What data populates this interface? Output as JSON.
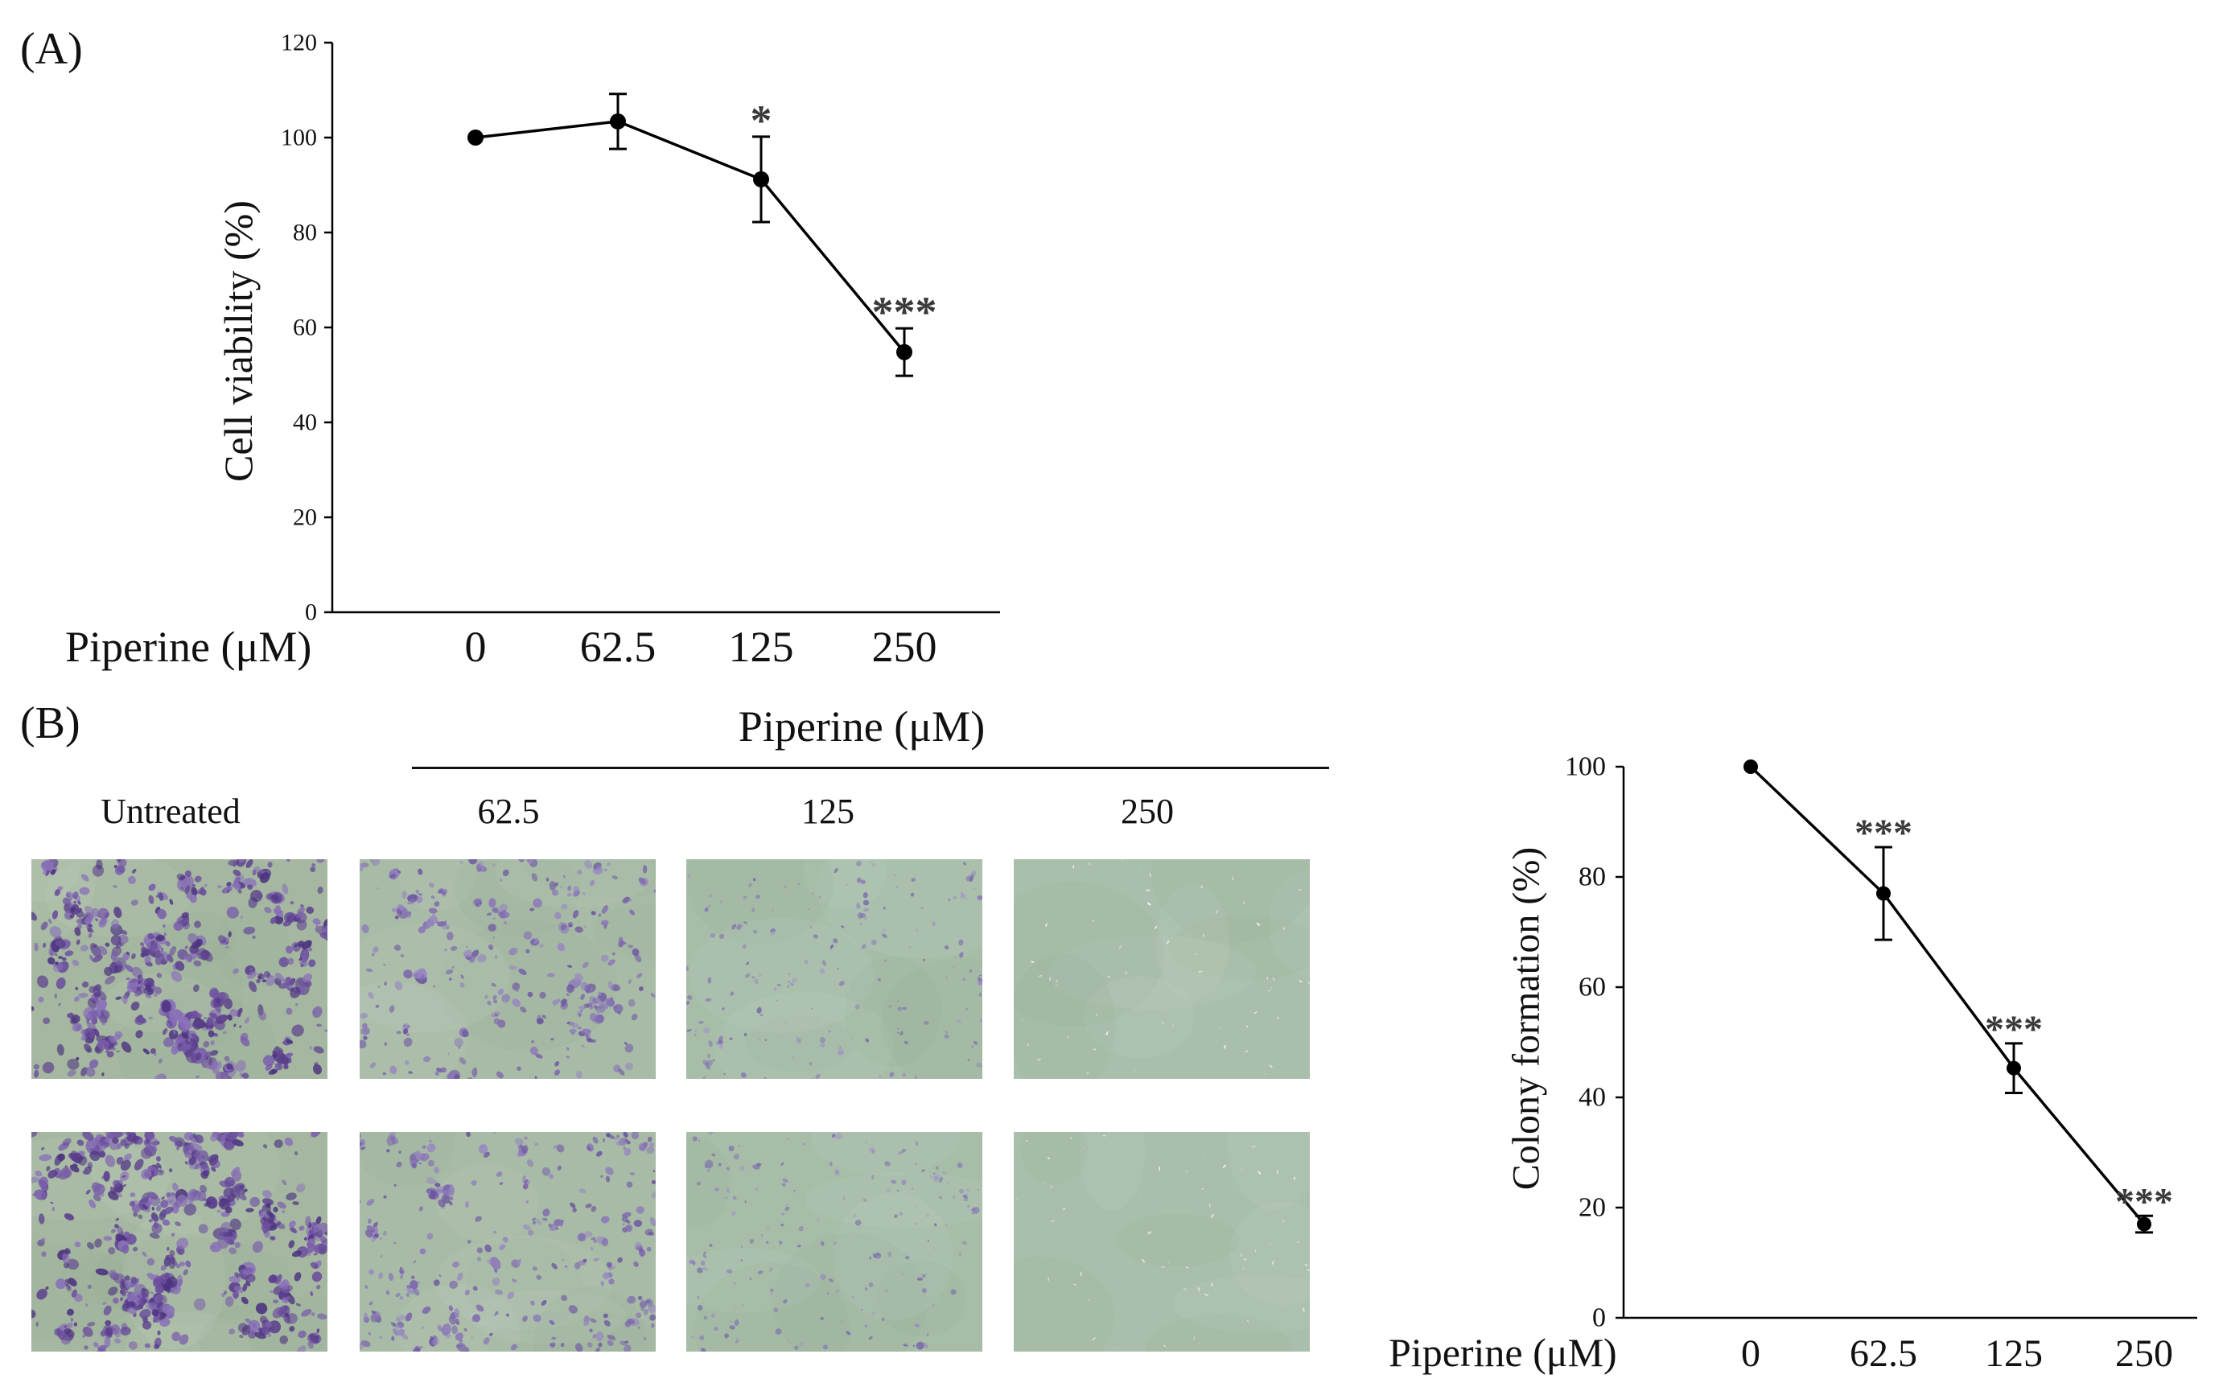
{
  "figure": {
    "panel_a_label": "(A)",
    "panel_b_label": "(B)"
  },
  "panel_b": {
    "treatment_header": "Piperine (μM)",
    "columns": [
      "Untreated",
      "62.5",
      "125",
      "250"
    ]
  },
  "colors": {
    "line": "#000000",
    "significance": "#3a3a3a"
  },
  "chart_data": [
    {
      "type": "line",
      "categories": [
        "0",
        "62.5",
        "125",
        "250"
      ],
      "values": [
        100,
        103.4,
        91.2,
        54.8
      ],
      "error": [
        0,
        5.8,
        9.0,
        5.0
      ],
      "significance": [
        "",
        "",
        "*",
        "***"
      ],
      "xlabel": "Piperine (μM)",
      "ylabel": "Cell viability (%)",
      "ylim": [
        0,
        120
      ],
      "y_ticks": [
        0,
        20,
        40,
        60,
        80,
        100,
        120
      ],
      "grid": false
    },
    {
      "type": "line",
      "categories": [
        "0",
        "62.5",
        "125",
        "250"
      ],
      "values": [
        100,
        77.0,
        45.3,
        17.0
      ],
      "error": [
        0,
        8.4,
        4.5,
        1.5
      ],
      "significance": [
        "",
        "***",
        "***",
        "***"
      ],
      "xlabel": "Piperine (μM)",
      "ylabel": "Colony formation (%)",
      "ylim": [
        0,
        100
      ],
      "y_ticks": [
        0,
        20,
        40,
        60,
        80,
        100
      ],
      "grid": false
    }
  ]
}
